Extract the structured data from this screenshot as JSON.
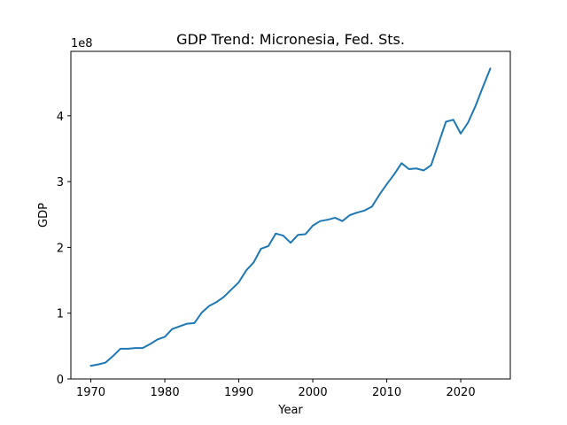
{
  "chart_data": {
    "type": "line",
    "title": "GDP Trend: Micronesia, Fed. Sts.",
    "xlabel": "Year",
    "ylabel": "GDP",
    "y_scale_label": "1e8",
    "xlim": [
      1967.3,
      2026.7
    ],
    "ylim": [
      0,
      4.98
    ],
    "x_ticks": [
      1970,
      1980,
      1990,
      2000,
      2010,
      2020
    ],
    "x_tick_labels": [
      "1970",
      "1980",
      "1990",
      "2000",
      "2010",
      "2020"
    ],
    "y_ticks": [
      0,
      1,
      2,
      3,
      4
    ],
    "y_tick_labels": [
      "0",
      "1",
      "2",
      "3",
      "4"
    ],
    "grid": false,
    "legend": "none",
    "line_color": "#1f77b4",
    "series": [
      {
        "x": [
          1970,
          1971,
          1972,
          1973,
          1974,
          1975,
          1976,
          1977,
          1978,
          1979,
          1980,
          1981,
          1982,
          1983,
          1984,
          1985,
          1986,
          1987,
          1988,
          1989,
          1990,
          1991,
          1992,
          1993,
          1994,
          1995,
          1996,
          1997,
          1998,
          1999,
          2000,
          2001,
          2002,
          2003,
          2004,
          2005,
          2006,
          2007,
          2008,
          2009,
          2010,
          2011,
          2012,
          2013,
          2014,
          2015,
          2016,
          2017,
          2018,
          2019,
          2020,
          2021,
          2022,
          2023,
          2024
        ],
        "y": [
          0.2,
          0.22,
          0.25,
          0.35,
          0.46,
          0.46,
          0.47,
          0.47,
          0.53,
          0.6,
          0.64,
          0.76,
          0.8,
          0.84,
          0.85,
          1.01,
          1.11,
          1.17,
          1.25,
          1.36,
          1.47,
          1.65,
          1.77,
          1.98,
          2.02,
          2.21,
          2.18,
          2.07,
          2.19,
          2.2,
          2.33,
          2.4,
          2.42,
          2.45,
          2.4,
          2.49,
          2.53,
          2.56,
          2.62,
          2.8,
          2.96,
          3.11,
          3.28,
          3.19,
          3.2,
          3.17,
          3.25,
          3.58,
          3.91,
          3.94,
          3.73,
          3.9,
          4.15,
          4.44,
          4.72
        ]
      }
    ]
  }
}
